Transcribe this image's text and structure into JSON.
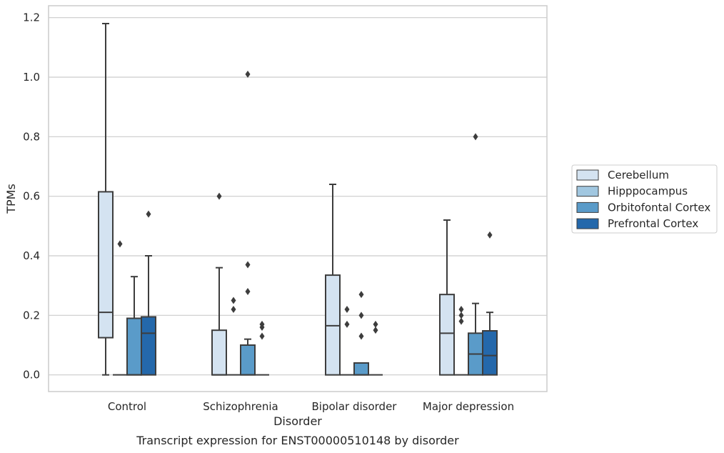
{
  "chart_data": {
    "type": "box",
    "title": "",
    "caption": "Transcript expression for ENST00000510148 by disorder",
    "xlabel": "Disorder",
    "ylabel": "TPMs",
    "ylim": [
      -0.056,
      1.24
    ],
    "yticks": [
      "0.0",
      "0.2",
      "0.4",
      "0.6",
      "0.8",
      "1.0",
      "1.2"
    ],
    "grid": "horizontal",
    "legend_position": "right",
    "categories": [
      "Control",
      "Schizophrenia",
      "Bipolar disorder",
      "Major depression"
    ],
    "series": [
      {
        "name": "Cerebellum",
        "color": "#d4e3f1",
        "boxes": [
          {
            "whislo": 0.0,
            "q1": 0.125,
            "med": 0.21,
            "q3": 0.615,
            "whishi": 1.18,
            "fliers": []
          },
          {
            "whislo": 0.0,
            "q1": 0.0,
            "med": 0.0,
            "q3": 0.15,
            "whishi": 0.36,
            "fliers": [
              0.6
            ]
          },
          {
            "whislo": 0.0,
            "q1": 0.0,
            "med": 0.165,
            "q3": 0.335,
            "whishi": 0.64,
            "fliers": []
          },
          {
            "whislo": 0.0,
            "q1": 0.0,
            "med": 0.14,
            "q3": 0.27,
            "whishi": 0.52,
            "fliers": []
          }
        ]
      },
      {
        "name": "Hipppocampus",
        "color": "#a1c7e0",
        "boxes": [
          {
            "whislo": 0.0,
            "q1": 0.0,
            "med": 0.0,
            "q3": 0.0,
            "whishi": 0.0,
            "fliers": [
              0.44
            ]
          },
          {
            "whislo": 0.0,
            "q1": 0.0,
            "med": 0.0,
            "q3": 0.0,
            "whishi": 0.0,
            "fliers": [
              0.22,
              0.25
            ]
          },
          {
            "whislo": 0.0,
            "q1": 0.0,
            "med": 0.0,
            "q3": 0.0,
            "whishi": 0.0,
            "fliers": [
              0.17,
              0.22
            ]
          },
          {
            "whislo": 0.0,
            "q1": 0.0,
            "med": 0.0,
            "q3": 0.0,
            "whishi": 0.0,
            "fliers": [
              0.18,
              0.2,
              0.22
            ]
          }
        ]
      },
      {
        "name": "Orbitofontal Cortex",
        "color": "#5a9bc9",
        "boxes": [
          {
            "whislo": 0.0,
            "q1": 0.0,
            "med": 0.0,
            "q3": 0.19,
            "whishi": 0.33,
            "fliers": []
          },
          {
            "whislo": 0.0,
            "q1": 0.0,
            "med": 0.0,
            "q3": 0.1,
            "whishi": 0.12,
            "fliers": [
              0.28,
              0.37,
              1.01
            ]
          },
          {
            "whislo": 0.0,
            "q1": 0.0,
            "med": 0.0,
            "q3": 0.04,
            "whishi": 0.04,
            "fliers": [
              0.13,
              0.2,
              0.27
            ]
          },
          {
            "whislo": 0.0,
            "q1": 0.0,
            "med": 0.07,
            "q3": 0.14,
            "whishi": 0.24,
            "fliers": [
              0.8
            ]
          }
        ]
      },
      {
        "name": "Prefrontal Cortex",
        "color": "#2468ab",
        "boxes": [
          {
            "whislo": 0.0,
            "q1": 0.0,
            "med": 0.14,
            "q3": 0.195,
            "whishi": 0.4,
            "fliers": [
              0.54
            ]
          },
          {
            "whislo": 0.0,
            "q1": 0.0,
            "med": 0.0,
            "q3": 0.0,
            "whishi": 0.0,
            "fliers": [
              0.13,
              0.16,
              0.17
            ]
          },
          {
            "whislo": 0.0,
            "q1": 0.0,
            "med": 0.0,
            "q3": 0.0,
            "whishi": 0.0,
            "fliers": [
              0.15,
              0.17
            ]
          },
          {
            "whislo": 0.0,
            "q1": 0.0,
            "med": 0.065,
            "q3": 0.148,
            "whishi": 0.21,
            "fliers": [
              0.47
            ]
          }
        ]
      }
    ]
  }
}
